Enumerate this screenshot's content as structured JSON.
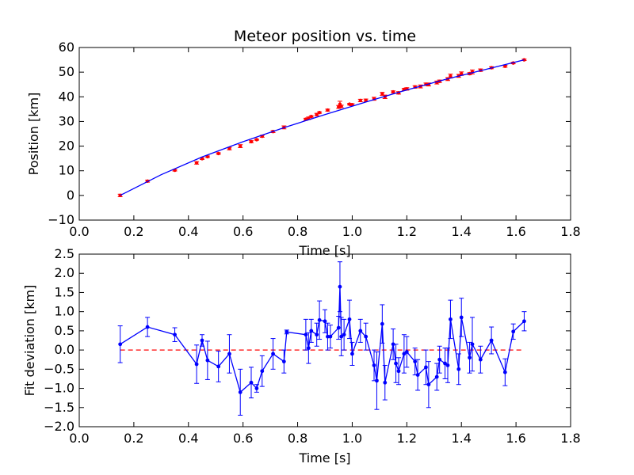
{
  "chart_data": [
    {
      "type": "scatter",
      "title": "Meteor position vs. time",
      "xlabel": "Time [s]",
      "ylabel": "Position [km]",
      "xlim": [
        0.0,
        1.8
      ],
      "ylim": [
        -10,
        60
      ],
      "xticks": [
        "0.0",
        "0.2",
        "0.4",
        "0.6",
        "0.8",
        "1.0",
        "1.2",
        "1.4",
        "1.6",
        "1.8"
      ],
      "yticks": [
        "−10",
        "0",
        "10",
        "20",
        "30",
        "40",
        "50",
        "60"
      ],
      "grid": false,
      "series": [
        {
          "kind": "points-with-errorbars",
          "color": "#ff0000",
          "x": [
            0.15,
            0.25,
            0.35,
            0.43,
            0.45,
            0.47,
            0.51,
            0.55,
            0.59,
            0.63,
            0.65,
            0.67,
            0.71,
            0.75,
            0.83,
            0.84,
            0.85,
            0.87,
            0.88,
            0.91,
            0.95,
            0.955,
            0.96,
            0.99,
            1.0,
            1.03,
            1.05,
            1.08,
            1.11,
            1.12,
            1.15,
            1.17,
            1.19,
            1.2,
            1.23,
            1.25,
            1.27,
            1.28,
            1.31,
            1.32,
            1.35,
            1.36,
            1.39,
            1.4,
            1.43,
            1.44,
            1.47,
            1.51,
            1.56,
            1.59,
            1.63
          ],
          "y": [
            0.0,
            5.8,
            10.2,
            13.2,
            14.9,
            15.7,
            17.0,
            19.0,
            20.0,
            21.8,
            22.6,
            24.0,
            25.9,
            27.6,
            30.9,
            31.3,
            32.0,
            32.8,
            33.6,
            34.6,
            35.9,
            37.0,
            36.1,
            37.0,
            36.8,
            38.5,
            38.6,
            39.2,
            41.2,
            40.0,
            42.0,
            41.6,
            43.0,
            43.2,
            44.0,
            44.2,
            45.1,
            45.0,
            45.8,
            46.3,
            47.2,
            48.4,
            48.5,
            49.4,
            49.4,
            50.1,
            50.8,
            51.8,
            52.4,
            53.7,
            55.0
          ],
          "err": [
            0.5,
            0.4,
            0.3,
            0.5,
            0.3,
            0.3,
            0.3,
            0.5,
            0.6,
            0.4,
            0.2,
            0.4,
            0.4,
            0.6,
            0.4,
            0.5,
            0.3,
            0.5,
            0.3,
            0.4,
            0.6,
            1.2,
            0.5,
            0.3,
            0.4,
            0.5,
            0.5,
            0.6,
            0.6,
            0.7,
            0.4,
            0.5,
            0.4,
            0.5,
            0.5,
            0.6,
            0.5,
            0.6,
            0.6,
            0.5,
            0.6,
            0.8,
            0.6,
            0.7,
            0.4,
            0.8,
            0.5,
            0.4,
            0.4,
            0.3,
            0.3
          ]
        },
        {
          "kind": "fit-line",
          "color": "#0000ff",
          "x": [
            0.15,
            0.3,
            0.45,
            0.6,
            0.75,
            0.9,
            1.05,
            1.2,
            1.35,
            1.5,
            1.63
          ],
          "y": [
            0.0,
            8.4,
            15.6,
            21.8,
            27.5,
            32.8,
            37.9,
            42.8,
            47.3,
            51.4,
            55.0
          ]
        }
      ]
    },
    {
      "type": "line",
      "title": "",
      "xlabel": "Time [s]",
      "ylabel": "Fit deviation [km]",
      "xlim": [
        0.0,
        1.8
      ],
      "ylim": [
        -2.0,
        2.5
      ],
      "xticks": [
        "0.0",
        "0.2",
        "0.4",
        "0.6",
        "0.8",
        "1.0",
        "1.2",
        "1.4",
        "1.6",
        "1.8"
      ],
      "yticks": [
        "−2.0",
        "−1.5",
        "−1.0",
        "−0.5",
        "0.0",
        "0.5",
        "1.0",
        "1.5",
        "2.0",
        "2.5"
      ],
      "grid": false,
      "reference_line": {
        "y": 0.0,
        "style": "dashed",
        "color": "#ff0000"
      },
      "series": [
        {
          "kind": "line-with-errorbars",
          "color": "#0000ff",
          "x": [
            0.15,
            0.25,
            0.35,
            0.43,
            0.45,
            0.47,
            0.51,
            0.55,
            0.59,
            0.63,
            0.65,
            0.67,
            0.71,
            0.75,
            0.76,
            0.83,
            0.84,
            0.85,
            0.87,
            0.88,
            0.9,
            0.91,
            0.92,
            0.95,
            0.955,
            0.96,
            0.97,
            0.99,
            1.0,
            1.03,
            1.05,
            1.08,
            1.09,
            1.11,
            1.12,
            1.15,
            1.16,
            1.17,
            1.19,
            1.2,
            1.23,
            1.24,
            1.27,
            1.28,
            1.31,
            1.32,
            1.34,
            1.35,
            1.36,
            1.39,
            1.4,
            1.43,
            1.44,
            1.47,
            1.51,
            1.56,
            1.59,
            1.63
          ],
          "y": [
            0.15,
            0.6,
            0.4,
            -0.37,
            0.25,
            -0.27,
            -0.43,
            -0.1,
            -1.1,
            -0.85,
            -1.0,
            -0.55,
            -0.1,
            -0.3,
            0.47,
            0.4,
            0.05,
            0.5,
            0.4,
            0.78,
            0.75,
            0.35,
            0.35,
            0.58,
            1.65,
            0.35,
            0.4,
            0.8,
            -0.1,
            0.5,
            0.35,
            -0.4,
            -0.8,
            0.68,
            -0.85,
            0.15,
            -0.35,
            -0.55,
            -0.1,
            -0.05,
            -0.3,
            -0.65,
            -0.45,
            -0.9,
            -0.7,
            -0.25,
            -0.35,
            -0.4,
            0.8,
            -0.5,
            0.85,
            -0.2,
            0.15,
            -0.25,
            0.25,
            -0.58,
            0.48,
            0.75
          ],
          "err": [
            0.48,
            0.25,
            0.18,
            0.5,
            0.15,
            0.5,
            0.4,
            0.5,
            0.6,
            0.4,
            0.1,
            0.4,
            0.4,
            0.3,
            0.05,
            0.4,
            0.4,
            0.3,
            0.3,
            0.5,
            0.3,
            0.35,
            0.3,
            0.3,
            0.65,
            0.5,
            0.4,
            0.5,
            0.3,
            0.3,
            0.35,
            0.4,
            0.75,
            0.5,
            0.45,
            0.4,
            0.5,
            0.35,
            0.5,
            0.4,
            0.35,
            0.4,
            0.45,
            0.6,
            0.35,
            0.35,
            0.4,
            0.45,
            0.5,
            0.4,
            0.5,
            0.4,
            0.7,
            0.35,
            0.35,
            0.35,
            0.2,
            0.25
          ]
        }
      ]
    }
  ]
}
